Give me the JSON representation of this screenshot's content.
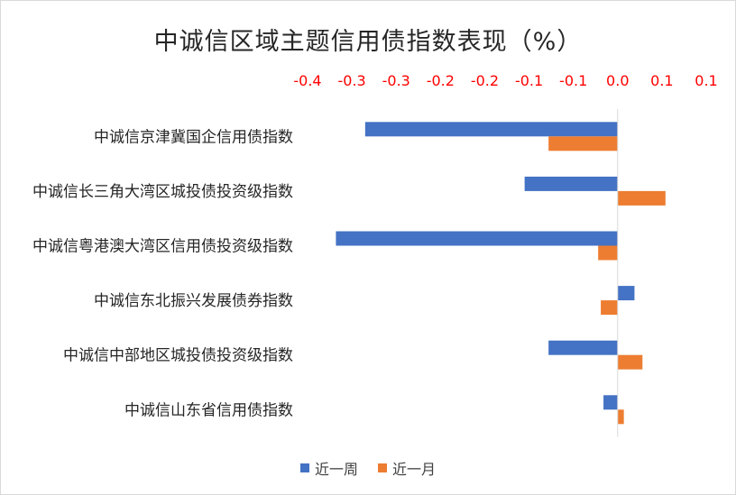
{
  "chart_data": {
    "type": "bar",
    "orientation": "horizontal",
    "title": "中诚信区域主题信用债指数表现（%）",
    "axis_position": "top",
    "axis_tick_labels": [
      "-0.4",
      "-0.3",
      "-0.3",
      "-0.2",
      "-0.2",
      "-0.1",
      "-0.1",
      "0.0",
      "0.1",
      "0.1"
    ],
    "axis_tick_values": [
      -0.35,
      -0.3,
      -0.25,
      -0.2,
      -0.15,
      -0.1,
      -0.05,
      0.0,
      0.05,
      0.1
    ],
    "xlim": [
      -0.35,
      0.1
    ],
    "tick_color": "#ff0000",
    "grid": false,
    "legend_position": "bottom",
    "categories": [
      "中诚信京津冀国企信用债指数",
      "中诚信长三角大湾区城投债投资级指数",
      "中诚信粤港澳大湾区信用债投资级指数",
      "中诚信东北振兴发展债券指数",
      "中诚信中部地区城投债投资级指数",
      "中诚信山东省信用债指数"
    ],
    "series": [
      {
        "name": "近一周",
        "color": "#4472c4",
        "values": [
          -0.285,
          -0.105,
          -0.318,
          0.019,
          -0.078,
          -0.016
        ]
      },
      {
        "name": "近一月",
        "color": "#ed7d31",
        "values": [
          -0.078,
          0.054,
          -0.022,
          -0.019,
          0.028,
          0.007
        ]
      }
    ]
  }
}
